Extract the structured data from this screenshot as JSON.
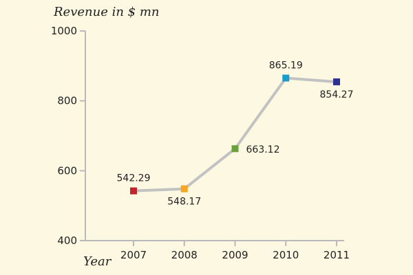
{
  "chart_data": {
    "type": "line",
    "ylabel": "Revenue in $ mn",
    "xlabel": "Year",
    "categories": [
      "2007",
      "2008",
      "2009",
      "2010",
      "2011"
    ],
    "values": [
      542.29,
      548.17,
      663.12,
      865.19,
      854.27
    ],
    "data_labels": [
      "542.29",
      "548.17",
      "663.12",
      "865.19",
      "854.27"
    ],
    "ylim": [
      400,
      1000
    ],
    "yticks": [
      "400",
      "600",
      "800",
      "1000"
    ],
    "grid": false,
    "legend": "none",
    "point_colors": [
      "#c0272d",
      "#f5a623",
      "#6aa23a",
      "#1a9bc8",
      "#2e3192"
    ],
    "line_color": "#c2c2c2",
    "axis_color": "#b9b9b9",
    "background": "#fdf8e2"
  }
}
